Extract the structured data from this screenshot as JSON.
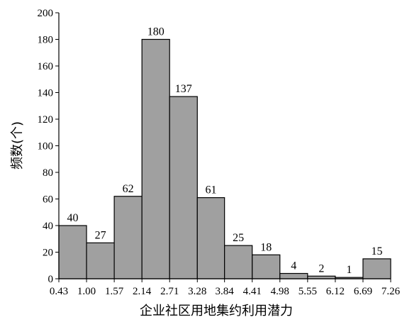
{
  "chart_data": {
    "type": "histogram",
    "x_label": "企业社区用地集约利用潜力",
    "y_label": "频数(个)",
    "bins": [
      0.43,
      1.0,
      1.57,
      2.14,
      2.71,
      3.28,
      3.84,
      4.41,
      4.98,
      5.55,
      6.12,
      6.69,
      7.26
    ],
    "values": [
      40,
      27,
      62,
      180,
      137,
      61,
      25,
      18,
      4,
      2,
      1,
      15
    ],
    "color": "#a0a0a0",
    "xlim": [
      0.43,
      7.26
    ],
    "xticks": [
      0.43,
      {
        "value": 1.0,
        "label": "1.00"
      },
      1.57,
      2.14,
      2.71,
      3.28,
      3.84,
      4.41,
      4.98,
      5.55,
      6.12,
      6.69,
      7.26
    ],
    "ylim": [
      0,
      200
    ],
    "yticks": [
      0,
      20,
      40,
      60,
      80,
      100,
      120,
      140,
      160,
      180,
      200
    ]
  }
}
